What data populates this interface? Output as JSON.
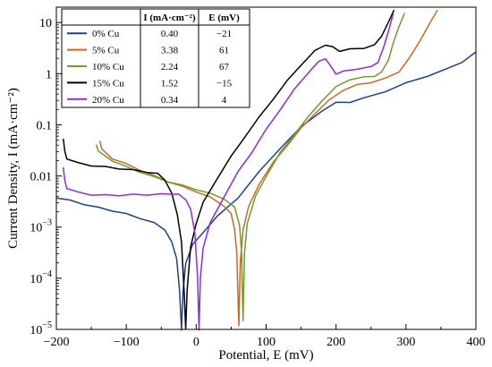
{
  "chart_data": {
    "type": "line",
    "xlabel": "Potential, E (mV)",
    "ylabel": "Current Density, I (mA·cm⁻²)",
    "xlim": [
      -200,
      400
    ],
    "ylim": [
      1e-05,
      20
    ],
    "yscale": "log",
    "x_ticks": [
      {
        "value": -200,
        "label": "−200"
      },
      {
        "value": -100,
        "label": "−100"
      },
      {
        "value": 0,
        "label": "0"
      },
      {
        "value": 100,
        "label": "100"
      },
      {
        "value": 200,
        "label": "200"
      },
      {
        "value": 300,
        "label": "300"
      },
      {
        "value": 400,
        "label": "400"
      }
    ],
    "y_ticks": [
      {
        "value": 1e-05,
        "base": "10",
        "exp": "−5"
      },
      {
        "value": 0.0001,
        "base": "10",
        "exp": "−4"
      },
      {
        "value": 0.001,
        "base": "10",
        "exp": "−3"
      },
      {
        "value": 0.01,
        "base": "0.01",
        "exp": ""
      },
      {
        "value": 0.1,
        "base": "0.1",
        "exp": ""
      },
      {
        "value": 1,
        "base": "1",
        "exp": ""
      },
      {
        "value": 10,
        "base": "10",
        "exp": ""
      }
    ],
    "legend": {
      "placement": "top-left",
      "headers": [
        "",
        "I (mA·cm⁻²)",
        "E (mV)"
      ],
      "rows": [
        {
          "name": "0% Cu",
          "I": "0.40",
          "E": "−21"
        },
        {
          "name": "5% Cu",
          "I": "3.38",
          "E": "61"
        },
        {
          "name": "10% Cu",
          "I": "2.24",
          "E": "67"
        },
        {
          "name": "15% Cu",
          "I": "1.52",
          "E": "−15"
        },
        {
          "name": "20% Cu",
          "I": "0.34",
          "E": "4"
        }
      ]
    },
    "series": [
      {
        "name": "0% Cu",
        "color": "#1f3f8f",
        "points": [
          [
            -200,
            0.0038
          ],
          [
            -180,
            0.0033
          ],
          [
            -160,
            0.0028
          ],
          [
            -140,
            0.0024
          ],
          [
            -120,
            0.0021
          ],
          [
            -100,
            0.0018
          ],
          [
            -80,
            0.0015
          ],
          [
            -60,
            0.0012
          ],
          [
            -45,
            0.0009
          ],
          [
            -35,
            0.0005
          ],
          [
            -28,
            0.00025
          ],
          [
            -24,
            6e-05
          ],
          [
            -21,
            1e-05
          ],
          [
            -19,
            5e-05
          ],
          [
            -15,
            0.0002
          ],
          [
            -5,
            0.00045
          ],
          [
            10,
            0.0008
          ],
          [
            30,
            0.0016
          ],
          [
            60,
            0.0038
          ],
          [
            90,
            0.012
          ],
          [
            120,
            0.035
          ],
          [
            150,
            0.09
          ],
          [
            180,
            0.19
          ],
          [
            200,
            0.27
          ],
          [
            220,
            0.28
          ],
          [
            240,
            0.33
          ],
          [
            270,
            0.45
          ],
          [
            300,
            0.65
          ],
          [
            330,
            0.9
          ],
          [
            360,
            1.25
          ],
          [
            380,
            1.7
          ],
          [
            400,
            2.6
          ]
        ]
      },
      {
        "name": "5% Cu",
        "color": "#c8692a",
        "points": [
          [
            -138,
            0.05
          ],
          [
            -135,
            0.033
          ],
          [
            -120,
            0.022
          ],
          [
            -100,
            0.017
          ],
          [
            -80,
            0.013
          ],
          [
            -60,
            0.01
          ],
          [
            -40,
            0.0078
          ],
          [
            -20,
            0.0062
          ],
          [
            0,
            0.005
          ],
          [
            20,
            0.0038
          ],
          [
            40,
            0.0026
          ],
          [
            50,
            0.0018
          ],
          [
            55,
            0.0009
          ],
          [
            58,
            0.0003
          ],
          [
            61,
            1.2e-05
          ],
          [
            63,
            0.0002
          ],
          [
            67,
            0.0009
          ],
          [
            75,
            0.0025
          ],
          [
            90,
            0.007
          ],
          [
            110,
            0.018
          ],
          [
            130,
            0.04
          ],
          [
            150,
            0.085
          ],
          [
            170,
            0.17
          ],
          [
            190,
            0.3
          ],
          [
            210,
            0.48
          ],
          [
            230,
            0.6
          ],
          [
            250,
            0.68
          ],
          [
            270,
            0.8
          ],
          [
            290,
            1.1
          ],
          [
            305,
            2.0
          ],
          [
            320,
            4.5
          ],
          [
            335,
            10
          ],
          [
            345,
            18
          ]
        ]
      },
      {
        "name": "10% Cu",
        "color": "#6f9a2f",
        "points": [
          [
            -143,
            0.042
          ],
          [
            -140,
            0.03
          ],
          [
            -120,
            0.02
          ],
          [
            -100,
            0.015
          ],
          [
            -80,
            0.012
          ],
          [
            -60,
            0.0095
          ],
          [
            -40,
            0.0078
          ],
          [
            -20,
            0.0065
          ],
          [
            0,
            0.0055
          ],
          [
            20,
            0.0045
          ],
          [
            40,
            0.0036
          ],
          [
            55,
            0.0024
          ],
          [
            62,
            0.0011
          ],
          [
            65,
            0.0003
          ],
          [
            67,
            1.5e-05
          ],
          [
            69,
            0.0003
          ],
          [
            73,
            0.0012
          ],
          [
            85,
            0.004
          ],
          [
            100,
            0.01
          ],
          [
            120,
            0.028
          ],
          [
            140,
            0.065
          ],
          [
            160,
            0.14
          ],
          [
            180,
            0.3
          ],
          [
            200,
            0.55
          ],
          [
            220,
            0.78
          ],
          [
            240,
            0.85
          ],
          [
            255,
            0.9
          ],
          [
            265,
            1.05
          ],
          [
            275,
            1.9
          ],
          [
            282,
            4.0
          ],
          [
            290,
            8.5
          ],
          [
            298,
            15
          ]
        ]
      },
      {
        "name": "15% Cu",
        "color": "#000000",
        "points": [
          [
            -190,
            0.055
          ],
          [
            -188,
            0.03
          ],
          [
            -185,
            0.022
          ],
          [
            -170,
            0.018
          ],
          [
            -150,
            0.016
          ],
          [
            -130,
            0.015
          ],
          [
            -110,
            0.014
          ],
          [
            -90,
            0.013
          ],
          [
            -70,
            0.012
          ],
          [
            -55,
            0.011
          ],
          [
            -45,
            0.0085
          ],
          [
            -35,
            0.0045
          ],
          [
            -27,
            0.0018
          ],
          [
            -21,
            0.0005
          ],
          [
            -17,
            5e-05
          ],
          [
            -15,
            1e-05
          ],
          [
            -13,
            6e-05
          ],
          [
            -8,
            0.0004
          ],
          [
            0,
            0.0012
          ],
          [
            10,
            0.003
          ],
          [
            30,
            0.009
          ],
          [
            50,
            0.024
          ],
          [
            70,
            0.06
          ],
          [
            90,
            0.14
          ],
          [
            110,
            0.32
          ],
          [
            130,
            0.72
          ],
          [
            150,
            1.5
          ],
          [
            170,
            2.8
          ],
          [
            185,
            3.7
          ],
          [
            195,
            3.3
          ],
          [
            205,
            2.8
          ],
          [
            220,
            3.0
          ],
          [
            240,
            3.2
          ],
          [
            255,
            3.6
          ],
          [
            265,
            5.5
          ],
          [
            275,
            10
          ],
          [
            283,
            18
          ]
        ]
      },
      {
        "name": "20% Cu",
        "color": "#8a2be2",
        "points": [
          [
            -190,
            0.015
          ],
          [
            -188,
            0.008
          ],
          [
            -185,
            0.0058
          ],
          [
            -170,
            0.0048
          ],
          [
            -150,
            0.0043
          ],
          [
            -130,
            0.0042
          ],
          [
            -110,
            0.0042
          ],
          [
            -90,
            0.0043
          ],
          [
            -70,
            0.0043
          ],
          [
            -50,
            0.0044
          ],
          [
            -35,
            0.0045
          ],
          [
            -25,
            0.0043
          ],
          [
            -15,
            0.0035
          ],
          [
            -8,
            0.0022
          ],
          [
            -2,
            0.0008
          ],
          [
            2,
            0.0001
          ],
          [
            4,
            1e-05
          ],
          [
            6,
            0.0001
          ],
          [
            10,
            0.0004
          ],
          [
            20,
            0.0012
          ],
          [
            40,
            0.004
          ],
          [
            60,
            0.012
          ],
          [
            80,
            0.03
          ],
          [
            100,
            0.08
          ],
          [
            120,
            0.2
          ],
          [
            140,
            0.48
          ],
          [
            160,
            1.05
          ],
          [
            175,
            1.7
          ],
          [
            185,
            2.0
          ],
          [
            192,
            1.4
          ],
          [
            200,
            1.0
          ],
          [
            210,
            1.1
          ],
          [
            230,
            1.25
          ],
          [
            250,
            1.35
          ],
          [
            260,
            1.7
          ],
          [
            268,
            3.2
          ],
          [
            275,
            7.0
          ],
          [
            282,
            15
          ]
        ]
      }
    ]
  }
}
